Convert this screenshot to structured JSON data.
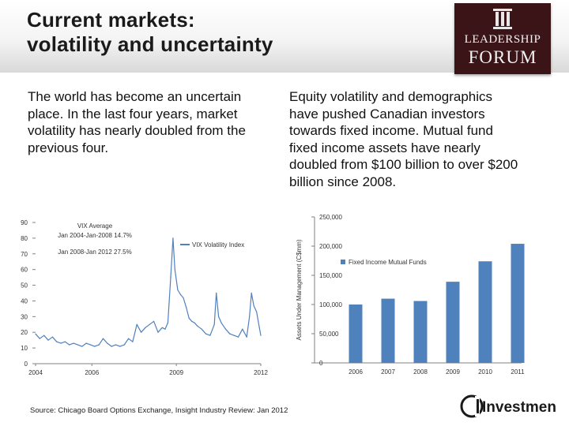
{
  "slide": {
    "title_line1": "Current markets:",
    "title_line2": "volatility and uncertainty",
    "left_text": "The world has become an uncertain place.  In the last four years, market volatility has nearly doubled from the previous four.",
    "right_text": "Equity volatility and demographics have pushed Canadian investors towards fixed income. Mutual fund fixed income assets have nearly doubled from $100 billion to over $200 billion since 2008.",
    "source": "Source: Chicago Board Options Exchange, Insight Industry Review: Jan 2012"
  },
  "logo": {
    "line1": "LEADERSHIP",
    "line2": "FORUM",
    "bg_color": "#3a1416"
  },
  "ci_logo": {
    "text": "Investments",
    "mark": "CI"
  },
  "colors": {
    "series": "#4f81bd",
    "axis": "#808080",
    "text": "#1a1a1a"
  },
  "chart_data": [
    {
      "type": "line",
      "series": [
        {
          "name": "VIX Volatility Index",
          "x": [
            2004.0,
            2004.15,
            2004.3,
            2004.45,
            2004.6,
            2004.75,
            2004.9,
            2005.05,
            2005.2,
            2005.35,
            2005.5,
            2005.65,
            2005.8,
            2005.95,
            2006.1,
            2006.25,
            2006.4,
            2006.55,
            2006.7,
            2006.85,
            2007.0,
            2007.15,
            2007.3,
            2007.45,
            2007.6,
            2007.75,
            2007.9,
            2008.05,
            2008.2,
            2008.35,
            2008.5,
            2008.6,
            2008.7,
            2008.8,
            2008.88,
            2008.95,
            2009.05,
            2009.15,
            2009.25,
            2009.35,
            2009.45,
            2009.55,
            2009.65,
            2009.75,
            2009.9,
            2010.05,
            2010.2,
            2010.35,
            2010.42,
            2010.5,
            2010.6,
            2010.75,
            2010.9,
            2011.05,
            2011.2,
            2011.35,
            2011.5,
            2011.6,
            2011.67,
            2011.75,
            2011.85,
            2011.95,
            2012.0
          ],
          "values": [
            19,
            16,
            18,
            15,
            17,
            14,
            13,
            14,
            12,
            13,
            12,
            11,
            13,
            12,
            11,
            12,
            16,
            13,
            11,
            12,
            11,
            12,
            16,
            14,
            25,
            20,
            23,
            25,
            27,
            20,
            23,
            22,
            26,
            55,
            80,
            60,
            47,
            44,
            42,
            36,
            29,
            27,
            26,
            24,
            22,
            19,
            18,
            25,
            45,
            30,
            26,
            22,
            19,
            18,
            17,
            22,
            17,
            30,
            45,
            37,
            33,
            23,
            18
          ],
          "average_labels": [
            "Jan 2004-Jan-2008  14.7%",
            "Jan 2008-Jan 2012  27.5%"
          ],
          "average_title": "VIX Average"
        }
      ],
      "x_ticks": [
        2004,
        2006,
        2009,
        2012
      ],
      "ylim": [
        0,
        90
      ],
      "y_ticks": [
        0,
        10,
        20,
        30,
        40,
        50,
        60,
        70,
        80,
        90
      ],
      "xlabel": "",
      "ylabel": "",
      "title": "",
      "legend": "top-center"
    },
    {
      "type": "bar",
      "categories": [
        "2006",
        "2007",
        "2008",
        "2009",
        "2010",
        "2011"
      ],
      "series": [
        {
          "name": "Fixed Income Mutual Funds",
          "values": [
            100000,
            110000,
            106000,
            139000,
            174000,
            204000
          ]
        }
      ],
      "ylim": [
        0,
        250000
      ],
      "y_ticks": [
        "0",
        "50,000",
        "100,000",
        "150,000",
        "200,000",
        "250,000"
      ],
      "ylabel": "Assets Under Management (C$mm)",
      "xlabel": "",
      "title": "",
      "legend": "top-left"
    }
  ]
}
